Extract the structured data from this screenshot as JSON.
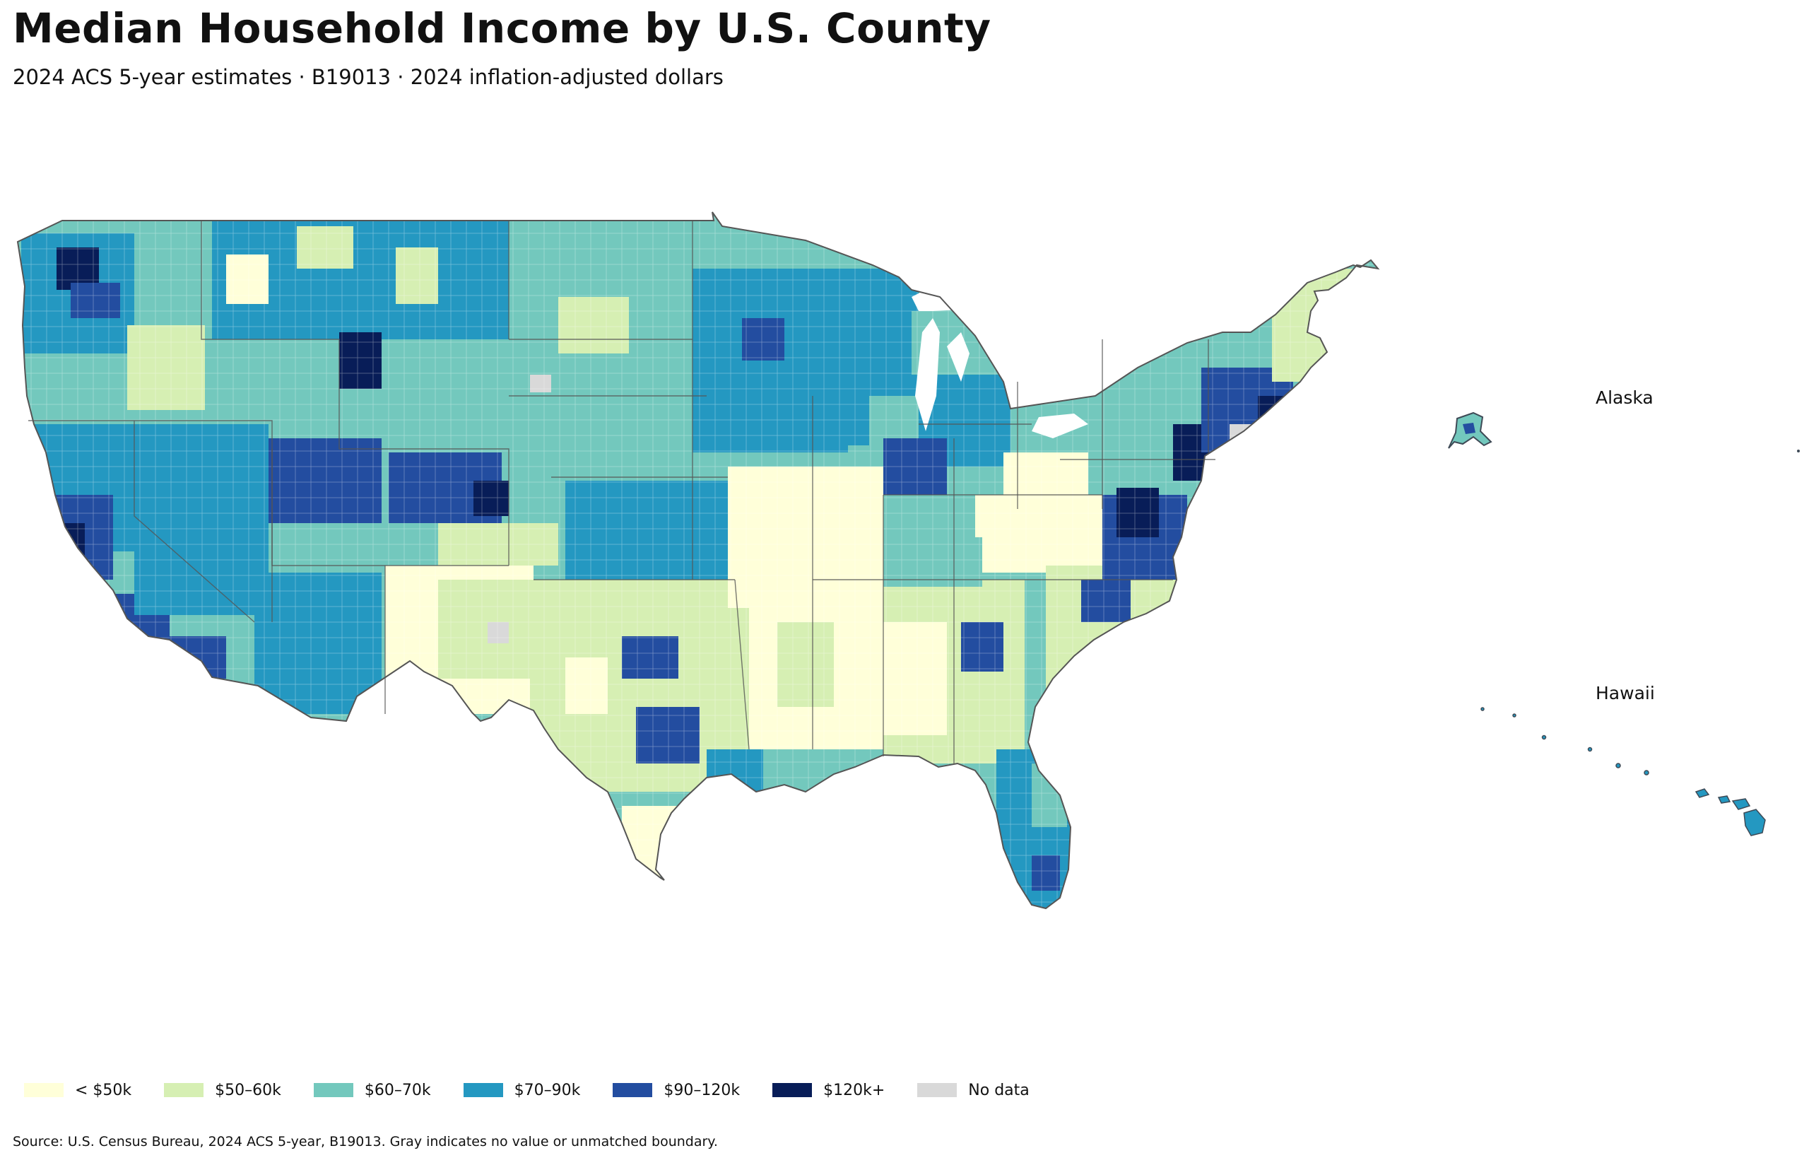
{
  "header": {
    "title": "Median Household Income by U.S. County",
    "subtitle": "2024 ACS 5-year estimates · B19013 · 2024 inflation-adjusted dollars"
  },
  "insets": {
    "alaska_label": "Alaska",
    "hawaii_label": "Hawaii"
  },
  "legend": [
    {
      "label": "< $50k",
      "color": "#ffffd9"
    },
    {
      "label": "$50–60k",
      "color": "#d6efb3"
    },
    {
      "label": "$60–70k",
      "color": "#73c8bd"
    },
    {
      "label": "$70–90k",
      "color": "#2498c1"
    },
    {
      "label": "$90–120k",
      "color": "#234da0"
    },
    {
      "label": "$120k+",
      "color": "#081d58"
    },
    {
      "label": "No data",
      "color": "#d9d9d9"
    }
  ],
  "footer": {
    "source": "Source: U.S. Census Bureau, 2024 ACS 5-year, B19013. Gray indicates no value or unmatched boundary."
  }
}
